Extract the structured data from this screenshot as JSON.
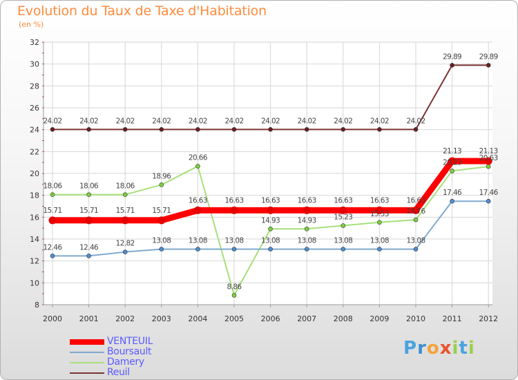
{
  "title": "Evolution du Taux de Taxe d'Habitation",
  "subtitle": "(en %)",
  "logo": {
    "letters": [
      "P",
      "r",
      "o",
      "x",
      "i",
      "t",
      "i"
    ],
    "colors": [
      "#4aa3df",
      "#3f8fd2",
      "#f3a33a",
      "#e8532d",
      "#9bcf4f",
      "#4aa3df",
      "#9bcf4f"
    ]
  },
  "chart_data": {
    "type": "line",
    "title": "Evolution du Taux de Taxe d'Habitation",
    "ylabel": "(en %)",
    "xlabel": "",
    "categories": [
      "2000",
      "2001",
      "2002",
      "2003",
      "2004",
      "2005",
      "2006",
      "2007",
      "2008",
      "2009",
      "2010",
      "2011",
      "2012"
    ],
    "ylim": [
      8,
      32
    ],
    "yticks": [
      "8",
      "10",
      "12",
      "14",
      "16",
      "18",
      "20",
      "22",
      "24",
      "26",
      "28",
      "30",
      "32"
    ],
    "grid": true,
    "series": [
      {
        "name": "Reuil",
        "color": "#7a3333",
        "marker": "#6a1f1f",
        "thick": false,
        "values": [
          24.02,
          24.02,
          24.02,
          24.02,
          24.02,
          24.02,
          24.02,
          24.02,
          24.02,
          24.02,
          24.02,
          29.89,
          29.89
        ],
        "labels": [
          "24.02",
          "24.02",
          "24.02",
          "24.02",
          "24.02",
          "24.02",
          "24.02",
          "24.02",
          "24.02",
          "24.02",
          "24.02",
          "29.89",
          "29.89"
        ]
      },
      {
        "name": "Damery",
        "color": "#a6e07a",
        "marker": "#7cd13f",
        "thick": false,
        "values": [
          18.06,
          18.06,
          18.06,
          18.96,
          20.66,
          8.86,
          14.93,
          14.93,
          15.23,
          15.53,
          15.76,
          20.23,
          20.63
        ],
        "labels": [
          "18.06",
          "18.06",
          "18.06",
          "18.96",
          "20.66",
          "8.86",
          "14.93",
          "14.93",
          "15.23",
          "15.53",
          "15.76",
          "20.23",
          "20.63"
        ]
      },
      {
        "name": "Boursault",
        "color": "#7fa9cc",
        "marker": "#4d8fd0",
        "thick": false,
        "values": [
          12.46,
          12.46,
          12.82,
          13.08,
          13.08,
          13.08,
          13.08,
          13.08,
          13.08,
          13.08,
          13.08,
          17.46,
          17.46
        ],
        "labels": [
          "12.46",
          "12.46",
          "12.82",
          "13.08",
          "13.08",
          "13.08",
          "13.08",
          "13.08",
          "13.08",
          "13.08",
          "13.08",
          "17.46",
          "17.46"
        ]
      },
      {
        "name": "VENTEUIL",
        "color": "#ff0000",
        "marker": "#e60000",
        "thick": true,
        "values": [
          15.71,
          15.71,
          15.71,
          15.71,
          16.63,
          16.63,
          16.63,
          16.63,
          16.63,
          16.63,
          16.63,
          21.13,
          21.13
        ],
        "labels": [
          "15.71",
          "15.71",
          "15.71",
          "15.71",
          "16.63",
          "16.63",
          "16.63",
          "16.63",
          "16.63",
          "16.63",
          "16.63",
          "21.13",
          "21.13"
        ]
      }
    ],
    "legend": [
      "VENTEUIL",
      "Boursault",
      "Damery",
      "Reuil"
    ],
    "legend_position": "bottom-left"
  }
}
